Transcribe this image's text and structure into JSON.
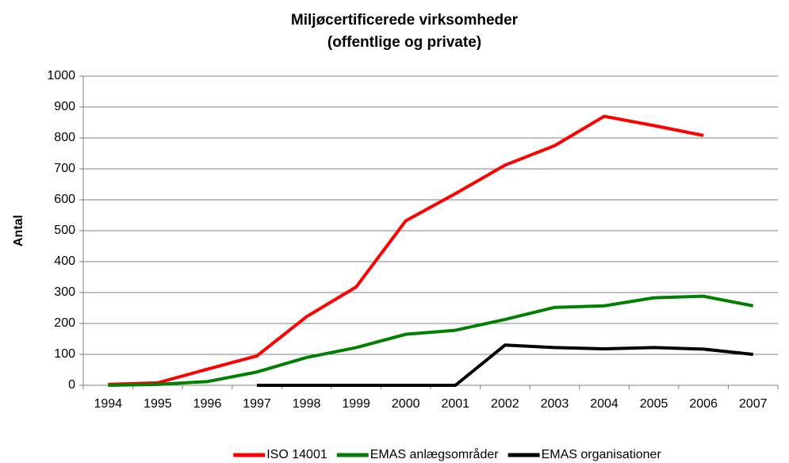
{
  "chart_data": {
    "type": "line",
    "title": [
      "Miljøcertificerede virksomheder",
      "(offentlige og private)"
    ],
    "y_label": "Antal",
    "categories": [
      "1994",
      "1995",
      "1996",
      "1997",
      "1998",
      "1999",
      "2000",
      "2001",
      "2002",
      "2003",
      "2004",
      "2005",
      "2006",
      "2007"
    ],
    "series": [
      {
        "name": "ISO 14001",
        "color": "#ff0000",
        "values": [
          3,
          8,
          52,
          95,
          222,
          318,
          532,
          620,
          712,
          775,
          870,
          840,
          808,
          null
        ]
      },
      {
        "name": "EMAS anlægsområder",
        "color": "#008000",
        "values": [
          0,
          3,
          12,
          43,
          90,
          122,
          165,
          178,
          213,
          252,
          257,
          283,
          288,
          257
        ]
      },
      {
        "name": "EMAS organisationer",
        "color": "#000000",
        "values": [
          null,
          null,
          null,
          0,
          0,
          0,
          0,
          0,
          130,
          122,
          118,
          122,
          117,
          100
        ]
      }
    ],
    "ylim": [
      0,
      1000
    ],
    "yticks": [
      0,
      100,
      200,
      300,
      400,
      500,
      600,
      700,
      800,
      900,
      1000
    ],
    "grid": true,
    "legend": "bottom"
  }
}
